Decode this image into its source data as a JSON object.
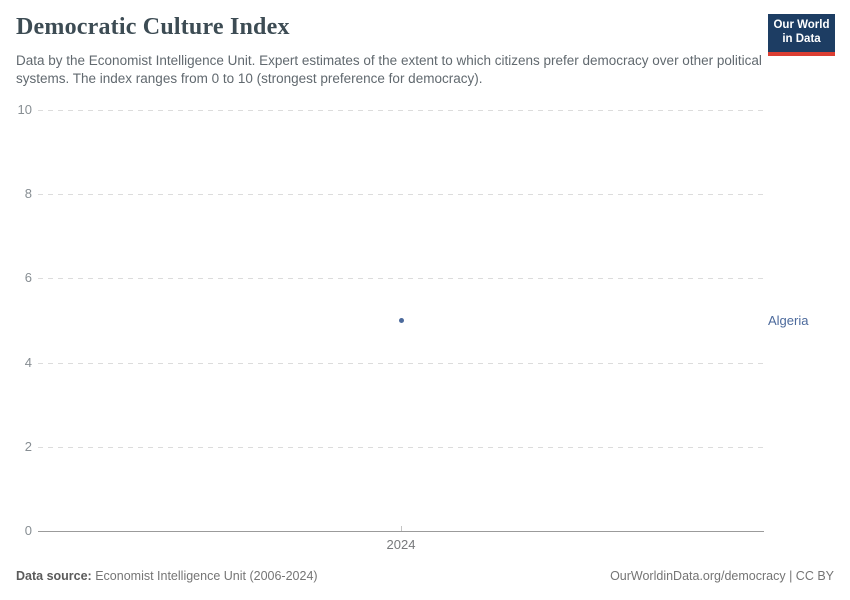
{
  "header": {
    "title": "Democratic Culture Index",
    "subtitle": "Data by the Economist Intelligence Unit. Expert estimates of the extent to which citizens prefer democracy over other political systems. The index ranges from 0 to 10 (strongest preference for democracy)."
  },
  "logo": {
    "line1": "Our World",
    "line2": "in Data",
    "bg_color": "#1d3d63",
    "accent_color": "#dc3e32"
  },
  "chart_data": {
    "type": "scatter",
    "title": "Democratic Culture Index",
    "x": [
      2024
    ],
    "series": [
      {
        "name": "Algeria",
        "values": [
          5.0
        ],
        "color": "#4c6a9c"
      }
    ],
    "xlabel": "",
    "ylabel": "",
    "ylim": [
      0,
      10
    ],
    "yticks": [
      0,
      2,
      4,
      6,
      8,
      10
    ],
    "xticks": [
      2024
    ],
    "grid": "horizontal-dashed",
    "legend_position": "right-entity-label",
    "colors": {
      "gridline": "#dcdcdc",
      "axis": "#9b9b9b",
      "tick_label": "#878e93"
    }
  },
  "footer": {
    "datasource_label": "Data source:",
    "datasource_value": " Economist Intelligence Unit (2006-2024)",
    "note": "OurWorldinData.org/democracy | CC BY"
  }
}
